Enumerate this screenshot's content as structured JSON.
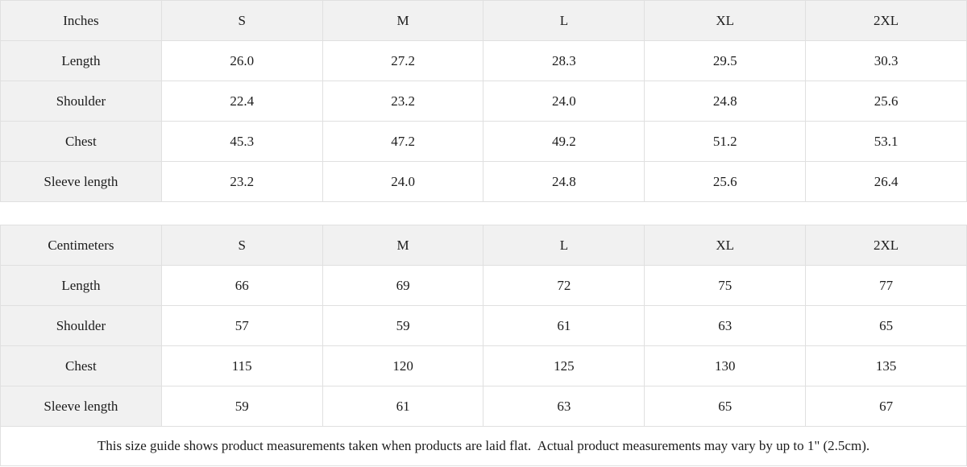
{
  "colors": {
    "header_background": "#f1f1f1",
    "border": "#e0e0e0",
    "text": "#1c1c1c",
    "cell_background": "#ffffff"
  },
  "tables": [
    {
      "unit_label": "Inches",
      "size_headers": [
        "S",
        "M",
        "L",
        "XL",
        "2XL"
      ],
      "rows": [
        {
          "label": "Length",
          "values": [
            "26.0",
            "27.2",
            "28.3",
            "29.5",
            "30.3"
          ]
        },
        {
          "label": "Shoulder",
          "values": [
            "22.4",
            "23.2",
            "24.0",
            "24.8",
            "25.6"
          ]
        },
        {
          "label": "Chest",
          "values": [
            "45.3",
            "47.2",
            "49.2",
            "51.2",
            "53.1"
          ]
        },
        {
          "label": "Sleeve length",
          "values": [
            "23.2",
            "24.0",
            "24.8",
            "25.6",
            "26.4"
          ]
        }
      ]
    },
    {
      "unit_label": "Centimeters",
      "size_headers": [
        "S",
        "M",
        "L",
        "XL",
        "2XL"
      ],
      "rows": [
        {
          "label": "Length",
          "values": [
            "66",
            "69",
            "72",
            "75",
            "77"
          ]
        },
        {
          "label": "Shoulder",
          "values": [
            "57",
            "59",
            "61",
            "63",
            "65"
          ]
        },
        {
          "label": "Chest",
          "values": [
            "115",
            "120",
            "125",
            "130",
            "135"
          ]
        },
        {
          "label": "Sleeve length",
          "values": [
            "59",
            "61",
            "63",
            "65",
            "67"
          ]
        }
      ]
    }
  ],
  "footer": {
    "note": "This size guide shows product measurements taken when products are laid flat.  Actual product measurements may vary by up to 1\" (2.5cm)."
  }
}
